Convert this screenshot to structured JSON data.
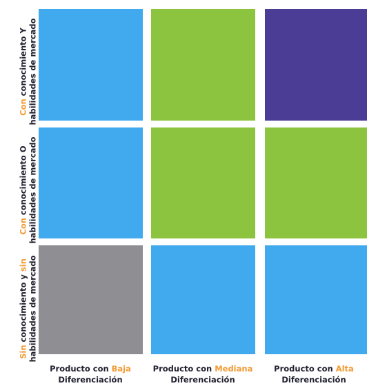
{
  "colors": {
    "blue": "#41a9ee",
    "green": "#8cc440",
    "purple": "#4b3d96",
    "gray": "#8e8e93",
    "highlight": "#f39a33"
  },
  "matrix": {
    "rows": [
      {
        "prefix": "",
        "highlight": "Con",
        "mid": " conocimiento Y",
        "suffix": "",
        "line2": "habilidades de mercado",
        "cells": [
          "blue",
          "green",
          "purple"
        ]
      },
      {
        "prefix": "",
        "highlight": "Con",
        "mid": " conocimiento O",
        "suffix": "",
        "line2": "habilidades de mercado",
        "cells": [
          "blue",
          "green",
          "green"
        ]
      },
      {
        "prefix": "",
        "highlight": "Sin",
        "mid": " conocimiento y ",
        "suffix": "sin",
        "line2": "habilidades de mercado",
        "cells": [
          "gray",
          "blue",
          "blue"
        ]
      }
    ],
    "columns": [
      {
        "prefix": "Producto con ",
        "highlight": "Baja",
        "line2": "Diferenciación"
      },
      {
        "prefix": "Producto con ",
        "highlight": "Mediana",
        "line2": "Diferenciación"
      },
      {
        "prefix": "Producto con ",
        "highlight": "Alta",
        "line2": "Diferenciación"
      }
    ]
  }
}
